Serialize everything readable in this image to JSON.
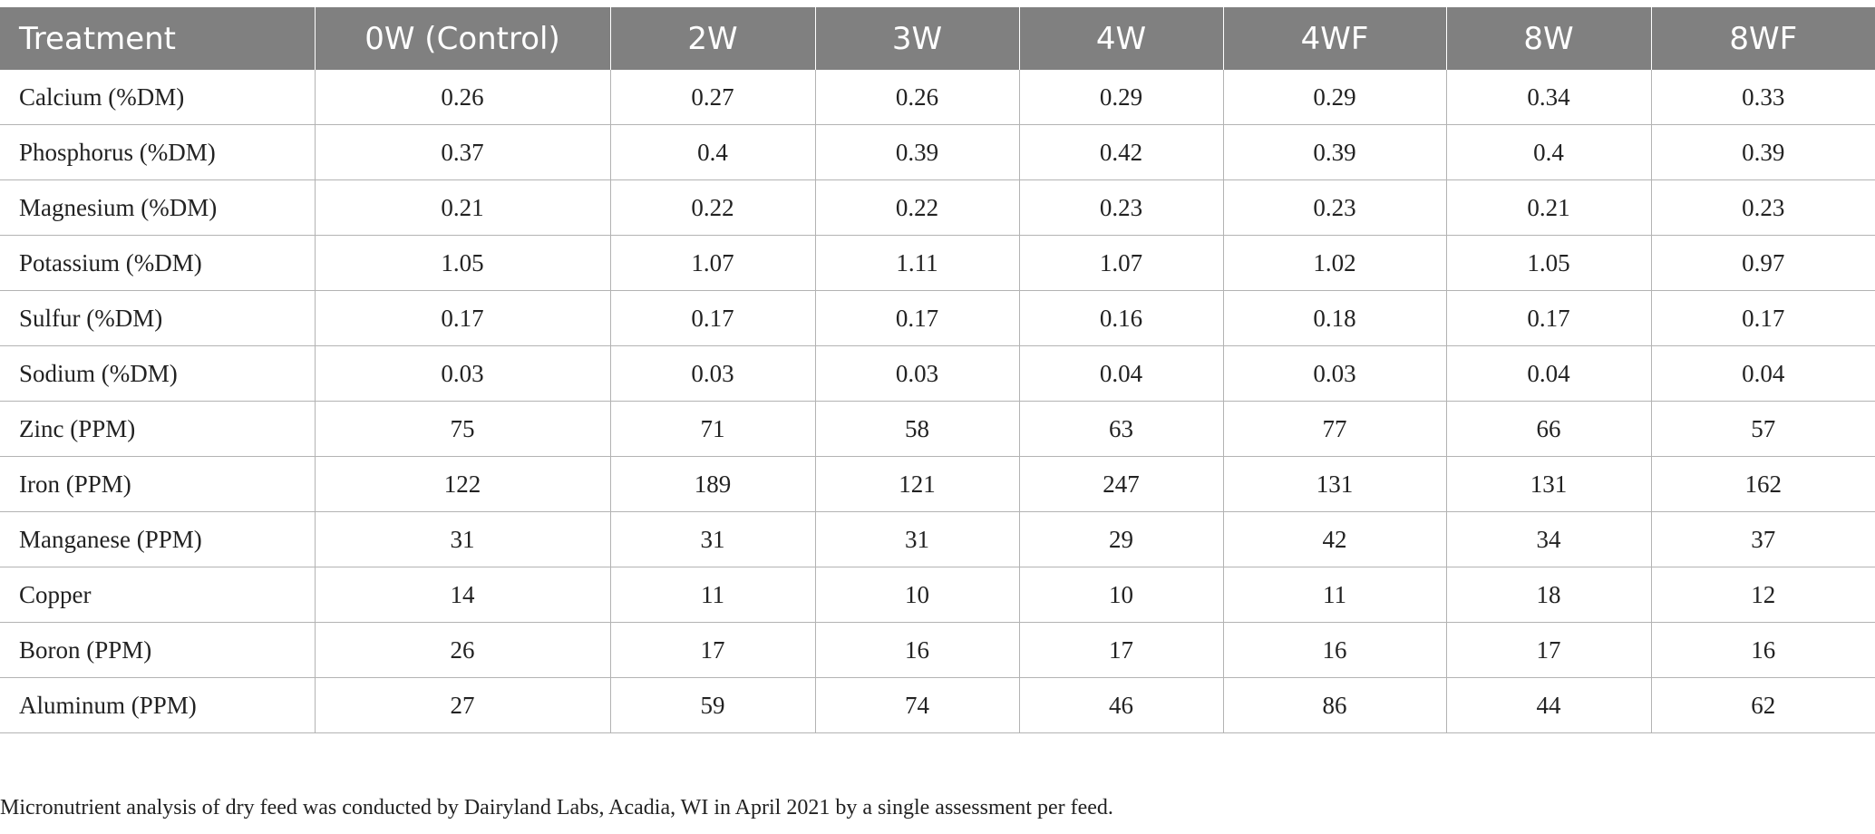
{
  "table": {
    "headers": [
      "Treatment",
      "0W (Control)",
      "2W",
      "3W",
      "4W",
      "4WF",
      "8W",
      "8WF"
    ],
    "rows": [
      [
        "Calcium (%DM)",
        "0.26",
        "0.27",
        "0.26",
        "0.29",
        "0.29",
        "0.34",
        "0.33"
      ],
      [
        "Phosphorus (%DM)",
        "0.37",
        "0.4",
        "0.39",
        "0.42",
        "0.39",
        "0.4",
        "0.39"
      ],
      [
        "Magnesium (%DM)",
        "0.21",
        "0.22",
        "0.22",
        "0.23",
        "0.23",
        "0.21",
        "0.23"
      ],
      [
        "Potassium (%DM)",
        "1.05",
        "1.07",
        "1.11",
        "1.07",
        "1.02",
        "1.05",
        "0.97"
      ],
      [
        "Sulfur (%DM)",
        "0.17",
        "0.17",
        "0.17",
        "0.16",
        "0.18",
        "0.17",
        "0.17"
      ],
      [
        "Sodium (%DM)",
        "0.03",
        "0.03",
        "0.03",
        "0.04",
        "0.03",
        "0.04",
        "0.04"
      ],
      [
        "Zinc (PPM)",
        "75",
        "71",
        "58",
        "63",
        "77",
        "66",
        "57"
      ],
      [
        "Iron (PPM)",
        "122",
        "189",
        "121",
        "247",
        "131",
        "131",
        "162"
      ],
      [
        "Manganese (PPM)",
        "31",
        "31",
        "31",
        "29",
        "42",
        "34",
        "37"
      ],
      [
        "Copper",
        "14",
        "11",
        "10",
        "10",
        "11",
        "18",
        "12"
      ],
      [
        "Boron (PPM)",
        "26",
        "17",
        "16",
        "17",
        "16",
        "17",
        "16"
      ],
      [
        "Aluminum (PPM)",
        "27",
        "59",
        "74",
        "46",
        "86",
        "44",
        "62"
      ]
    ]
  },
  "footnote": "Micronutrient analysis of dry feed was conducted by Dairyland Labs, Acadia, WI in April 2021 by a single assessment per feed.",
  "colors": {
    "header_bg": "#808080",
    "header_text": "#ffffff",
    "grid": "#b3b3b3",
    "body_text": "#222222"
  }
}
